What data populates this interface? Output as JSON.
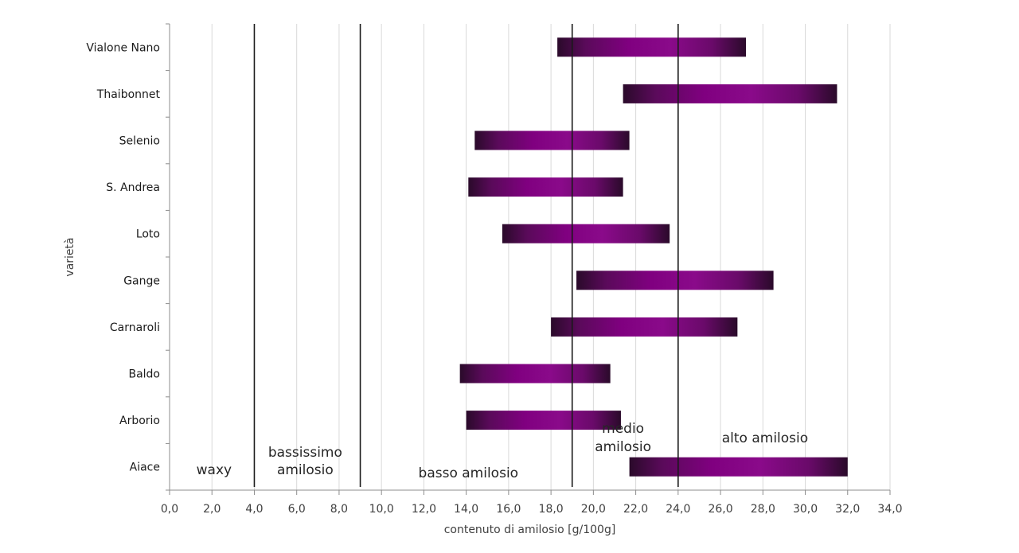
{
  "chart_data": {
    "type": "bar",
    "orientation": "horizontal-range",
    "xlabel": "contenuto di amilosio [g/100g]",
    "ylabel": "varietà",
    "xlim": [
      0,
      34
    ],
    "xticks": [
      "0,0",
      "2,0",
      "4,0",
      "6,0",
      "8,0",
      "10,0",
      "12,0",
      "14,0",
      "16,0",
      "18,0",
      "20,0",
      "22,0",
      "24,0",
      "26,0",
      "28,0",
      "30,0",
      "32,0",
      "34,0"
    ],
    "grid": "vertical",
    "bar_color": "#800080",
    "bar_edge_color": "#2a0a2a",
    "categories": [
      "Vialone Nano",
      "Thaibonnet",
      "Selenio",
      "S. Andrea",
      "Loto",
      "Gange",
      "Carnaroli",
      "Baldo",
      "Arborio",
      "Aiace"
    ],
    "ranges": [
      {
        "category": "Vialone Nano",
        "min": 18.3,
        "max": 27.2
      },
      {
        "category": "Thaibonnet",
        "min": 21.4,
        "max": 31.5
      },
      {
        "category": "Selenio",
        "min": 14.4,
        "max": 21.7
      },
      {
        "category": "S. Andrea",
        "min": 14.1,
        "max": 21.4
      },
      {
        "category": "Loto",
        "min": 15.7,
        "max": 23.6
      },
      {
        "category": "Gange",
        "min": 19.2,
        "max": 28.5
      },
      {
        "category": "Carnaroli",
        "min": 18.0,
        "max": 26.8
      },
      {
        "category": "Baldo",
        "min": 13.7,
        "max": 20.8
      },
      {
        "category": "Arborio",
        "min": 14.0,
        "max": 21.3
      },
      {
        "category": "Aiace",
        "min": 21.7,
        "max": 32.0
      }
    ],
    "thresholds": [
      4.0,
      9.0,
      19.0,
      24.0
    ],
    "regions": [
      {
        "lines": [
          "waxy"
        ],
        "x": 2.1
      },
      {
        "lines": [
          "bassissimo",
          "amilosio"
        ],
        "x": 6.4
      },
      {
        "lines": [
          "basso amilosio"
        ],
        "x": 14.1
      },
      {
        "lines": [
          "medio",
          "amilosio"
        ],
        "x": 21.4
      },
      {
        "lines": [
          "alto amilosio"
        ],
        "x": 28.1
      }
    ]
  }
}
